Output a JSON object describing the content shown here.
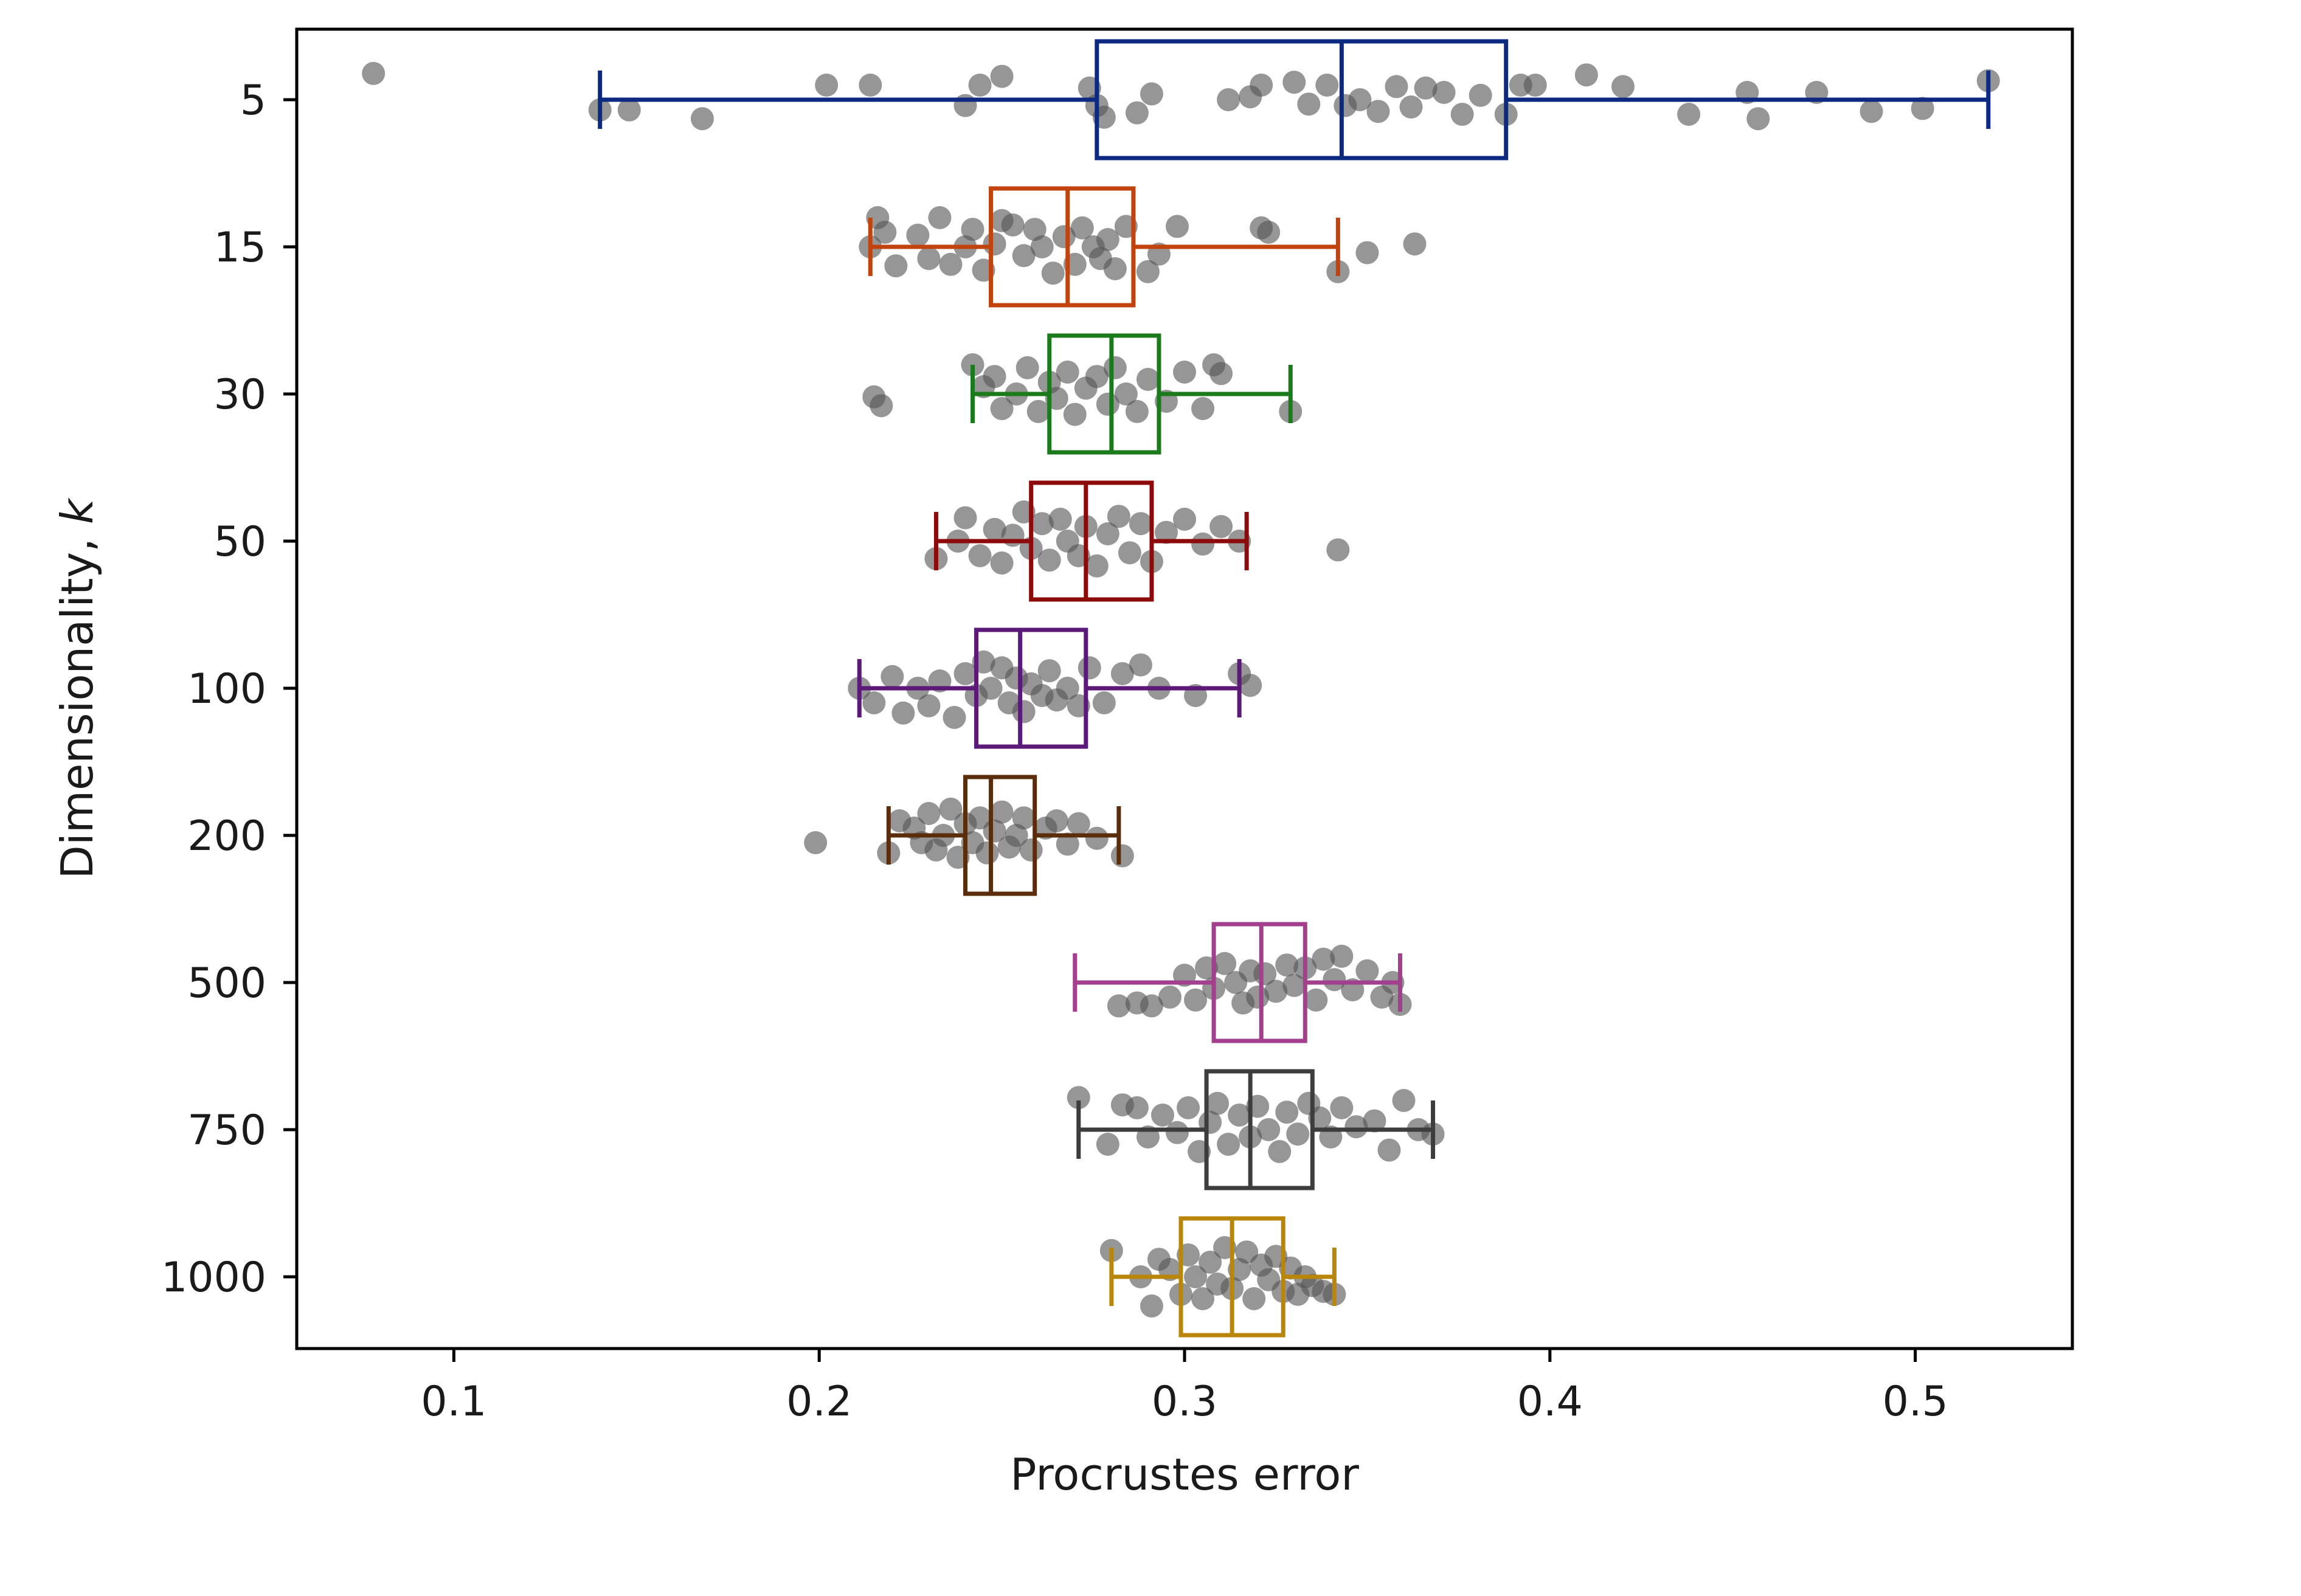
{
  "chart_data": {
    "type": "box",
    "orientation": "horizontal",
    "title": "",
    "xlabel": "Procrustes error",
    "ylabel": "Dimensionality, k",
    "ylabel_italic_part": "k",
    "xlim": [
      0.057,
      0.543
    ],
    "xticks": [
      0.1,
      0.2,
      0.3,
      0.4,
      0.5
    ],
    "xtick_labels": [
      "0.1",
      "0.2",
      "0.3",
      "0.4",
      "0.5"
    ],
    "grid": false,
    "legend": "none",
    "point_color": "#555555",
    "categories": [
      "5",
      "15",
      "30",
      "50",
      "100",
      "200",
      "500",
      "750",
      "1000"
    ],
    "series": [
      {
        "category": "5",
        "color": "#0b2a80",
        "whisker_low": 0.14,
        "q1": 0.276,
        "median": 0.343,
        "q3": 0.388,
        "whisker_high": 0.52,
        "points": [
          [
            0.078,
            0.18
          ],
          [
            0.14,
            -0.07
          ],
          [
            0.148,
            -0.07
          ],
          [
            0.168,
            -0.13
          ],
          [
            0.202,
            0.1
          ],
          [
            0.214,
            0.1
          ],
          [
            0.24,
            -0.04
          ],
          [
            0.244,
            0.1
          ],
          [
            0.25,
            0.16
          ],
          [
            0.274,
            0.08
          ],
          [
            0.276,
            -0.04
          ],
          [
            0.278,
            -0.12
          ],
          [
            0.287,
            -0.09
          ],
          [
            0.291,
            0.04
          ],
          [
            0.312,
            0.0
          ],
          [
            0.318,
            0.02
          ],
          [
            0.321,
            0.1
          ],
          [
            0.33,
            0.12
          ],
          [
            0.334,
            -0.03
          ],
          [
            0.339,
            0.1
          ],
          [
            0.344,
            -0.04
          ],
          [
            0.348,
            0.0
          ],
          [
            0.353,
            -0.08
          ],
          [
            0.358,
            0.09
          ],
          [
            0.362,
            -0.05
          ],
          [
            0.366,
            0.08
          ],
          [
            0.371,
            0.05
          ],
          [
            0.376,
            -0.1
          ],
          [
            0.381,
            0.03
          ],
          [
            0.388,
            -0.1
          ],
          [
            0.392,
            0.1
          ],
          [
            0.396,
            0.1
          ],
          [
            0.41,
            0.17
          ],
          [
            0.42,
            0.09
          ],
          [
            0.438,
            -0.1
          ],
          [
            0.454,
            0.05
          ],
          [
            0.457,
            -0.13
          ],
          [
            0.473,
            0.05
          ],
          [
            0.488,
            -0.08
          ],
          [
            0.502,
            -0.06
          ],
          [
            0.52,
            0.13
          ]
        ]
      },
      {
        "category": "15",
        "color": "#c1440e",
        "whisker_low": 0.214,
        "q1": 0.247,
        "median": 0.268,
        "q3": 0.286,
        "whisker_high": 0.342,
        "points": [
          [
            0.214,
            0.0
          ],
          [
            0.216,
            0.2
          ],
          [
            0.218,
            0.1
          ],
          [
            0.221,
            -0.13
          ],
          [
            0.227,
            0.08
          ],
          [
            0.23,
            -0.08
          ],
          [
            0.233,
            0.2
          ],
          [
            0.236,
            -0.12
          ],
          [
            0.24,
            0.0
          ],
          [
            0.242,
            0.12
          ],
          [
            0.245,
            -0.16
          ],
          [
            0.248,
            0.02
          ],
          [
            0.25,
            0.18
          ],
          [
            0.253,
            0.15
          ],
          [
            0.256,
            -0.06
          ],
          [
            0.259,
            0.12
          ],
          [
            0.261,
            0.0
          ],
          [
            0.264,
            -0.18
          ],
          [
            0.267,
            0.07
          ],
          [
            0.27,
            -0.12
          ],
          [
            0.272,
            0.13
          ],
          [
            0.275,
            0.0
          ],
          [
            0.277,
            -0.08
          ],
          [
            0.279,
            0.05
          ],
          [
            0.281,
            -0.15
          ],
          [
            0.284,
            0.14
          ],
          [
            0.29,
            -0.17
          ],
          [
            0.293,
            -0.05
          ],
          [
            0.298,
            0.14
          ],
          [
            0.321,
            0.13
          ],
          [
            0.323,
            0.1
          ],
          [
            0.342,
            -0.17
          ],
          [
            0.35,
            -0.04
          ],
          [
            0.363,
            0.02
          ]
        ]
      },
      {
        "category": "30",
        "color": "#1b7a1b",
        "whisker_low": 0.242,
        "q1": 0.263,
        "median": 0.28,
        "q3": 0.293,
        "whisker_high": 0.329,
        "points": [
          [
            0.215,
            -0.02
          ],
          [
            0.217,
            -0.08
          ],
          [
            0.242,
            0.2
          ],
          [
            0.245,
            0.05
          ],
          [
            0.248,
            0.12
          ],
          [
            0.25,
            -0.1
          ],
          [
            0.254,
            0.0
          ],
          [
            0.257,
            0.18
          ],
          [
            0.26,
            -0.12
          ],
          [
            0.263,
            0.08
          ],
          [
            0.265,
            -0.03
          ],
          [
            0.268,
            0.15
          ],
          [
            0.27,
            -0.14
          ],
          [
            0.273,
            0.04
          ],
          [
            0.276,
            0.12
          ],
          [
            0.279,
            -0.07
          ],
          [
            0.281,
            0.18
          ],
          [
            0.284,
            0.0
          ],
          [
            0.287,
            -0.12
          ],
          [
            0.29,
            0.1
          ],
          [
            0.295,
            -0.05
          ],
          [
            0.3,
            0.15
          ],
          [
            0.305,
            -0.1
          ],
          [
            0.308,
            0.2
          ],
          [
            0.31,
            0.14
          ],
          [
            0.329,
            -0.12
          ]
        ]
      },
      {
        "category": "50",
        "color": "#8c0a0a",
        "whisker_low": 0.232,
        "q1": 0.258,
        "median": 0.273,
        "q3": 0.291,
        "whisker_high": 0.317,
        "points": [
          [
            0.232,
            -0.12
          ],
          [
            0.238,
            0.0
          ],
          [
            0.24,
            0.16
          ],
          [
            0.244,
            -0.1
          ],
          [
            0.248,
            0.08
          ],
          [
            0.25,
            -0.15
          ],
          [
            0.253,
            0.04
          ],
          [
            0.256,
            0.2
          ],
          [
            0.258,
            -0.05
          ],
          [
            0.261,
            0.12
          ],
          [
            0.263,
            -0.13
          ],
          [
            0.266,
            0.15
          ],
          [
            0.268,
            0.0
          ],
          [
            0.271,
            -0.1
          ],
          [
            0.273,
            0.1
          ],
          [
            0.276,
            -0.17
          ],
          [
            0.279,
            0.05
          ],
          [
            0.282,
            0.17
          ],
          [
            0.285,
            -0.08
          ],
          [
            0.288,
            0.12
          ],
          [
            0.291,
            -0.14
          ],
          [
            0.295,
            0.06
          ],
          [
            0.3,
            0.15
          ],
          [
            0.305,
            -0.02
          ],
          [
            0.31,
            0.1
          ],
          [
            0.315,
            0.0
          ],
          [
            0.342,
            -0.06
          ]
        ]
      },
      {
        "category": "100",
        "color": "#5c1a78",
        "whisker_low": 0.211,
        "q1": 0.243,
        "median": 0.255,
        "q3": 0.273,
        "whisker_high": 0.315,
        "points": [
          [
            0.211,
            0.0
          ],
          [
            0.215,
            -0.1
          ],
          [
            0.22,
            0.08
          ],
          [
            0.223,
            -0.17
          ],
          [
            0.227,
            0.0
          ],
          [
            0.23,
            -0.12
          ],
          [
            0.233,
            0.05
          ],
          [
            0.237,
            -0.2
          ],
          [
            0.24,
            0.1
          ],
          [
            0.243,
            -0.05
          ],
          [
            0.245,
            0.18
          ],
          [
            0.247,
            0.0
          ],
          [
            0.25,
            0.14
          ],
          [
            0.252,
            -0.1
          ],
          [
            0.254,
            0.07
          ],
          [
            0.256,
            -0.16
          ],
          [
            0.258,
            0.03
          ],
          [
            0.261,
            -0.05
          ],
          [
            0.263,
            0.12
          ],
          [
            0.265,
            -0.08
          ],
          [
            0.268,
            0.0
          ],
          [
            0.271,
            -0.12
          ],
          [
            0.274,
            0.14
          ],
          [
            0.278,
            -0.1
          ],
          [
            0.283,
            0.1
          ],
          [
            0.288,
            0.16
          ],
          [
            0.293,
            0.0
          ],
          [
            0.303,
            -0.05
          ],
          [
            0.315,
            0.1
          ],
          [
            0.318,
            0.02
          ]
        ]
      },
      {
        "category": "200",
        "color": "#5a2d0c",
        "whisker_low": 0.219,
        "q1": 0.24,
        "median": 0.247,
        "q3": 0.259,
        "whisker_high": 0.282,
        "points": [
          [
            0.199,
            -0.05
          ],
          [
            0.219,
            -0.12
          ],
          [
            0.222,
            0.1
          ],
          [
            0.226,
            0.05
          ],
          [
            0.228,
            -0.05
          ],
          [
            0.23,
            0.15
          ],
          [
            0.232,
            -0.1
          ],
          [
            0.234,
            0.0
          ],
          [
            0.236,
            0.18
          ],
          [
            0.238,
            -0.15
          ],
          [
            0.24,
            0.08
          ],
          [
            0.242,
            -0.05
          ],
          [
            0.244,
            0.12
          ],
          [
            0.246,
            -0.12
          ],
          [
            0.248,
            0.03
          ],
          [
            0.25,
            0.16
          ],
          [
            0.252,
            -0.08
          ],
          [
            0.254,
            0.0
          ],
          [
            0.256,
            0.12
          ],
          [
            0.258,
            -0.1
          ],
          [
            0.262,
            0.05
          ],
          [
            0.265,
            0.1
          ],
          [
            0.268,
            -0.06
          ],
          [
            0.271,
            0.08
          ],
          [
            0.276,
            -0.02
          ],
          [
            0.283,
            -0.14
          ]
        ]
      },
      {
        "category": "500",
        "color": "#a33f8c",
        "whisker_low": 0.27,
        "q1": 0.308,
        "median": 0.321,
        "q3": 0.333,
        "whisker_high": 0.359,
        "points": [
          [
            0.282,
            -0.16
          ],
          [
            0.287,
            -0.14
          ],
          [
            0.291,
            -0.16
          ],
          [
            0.296,
            -0.1
          ],
          [
            0.3,
            0.05
          ],
          [
            0.303,
            -0.12
          ],
          [
            0.306,
            0.1
          ],
          [
            0.308,
            -0.04
          ],
          [
            0.311,
            0.13
          ],
          [
            0.314,
            0.0
          ],
          [
            0.316,
            -0.14
          ],
          [
            0.318,
            0.08
          ],
          [
            0.32,
            -0.1
          ],
          [
            0.322,
            0.06
          ],
          [
            0.325,
            -0.06
          ],
          [
            0.328,
            0.12
          ],
          [
            0.33,
            -0.02
          ],
          [
            0.333,
            0.1
          ],
          [
            0.336,
            -0.12
          ],
          [
            0.338,
            0.16
          ],
          [
            0.341,
            0.02
          ],
          [
            0.343,
            0.18
          ],
          [
            0.346,
            -0.05
          ],
          [
            0.35,
            0.08
          ],
          [
            0.354,
            -0.1
          ],
          [
            0.357,
            0.0
          ],
          [
            0.359,
            -0.15
          ]
        ]
      },
      {
        "category": "750",
        "color": "#3d3d3d",
        "whisker_low": 0.271,
        "q1": 0.306,
        "median": 0.318,
        "q3": 0.335,
        "whisker_high": 0.368,
        "points": [
          [
            0.271,
            0.22
          ],
          [
            0.279,
            -0.1
          ],
          [
            0.283,
            0.17
          ],
          [
            0.287,
            0.15
          ],
          [
            0.29,
            -0.05
          ],
          [
            0.294,
            0.1
          ],
          [
            0.298,
            -0.02
          ],
          [
            0.301,
            0.15
          ],
          [
            0.304,
            -0.15
          ],
          [
            0.307,
            0.05
          ],
          [
            0.309,
            0.18
          ],
          [
            0.312,
            -0.1
          ],
          [
            0.315,
            0.1
          ],
          [
            0.318,
            -0.05
          ],
          [
            0.32,
            0.16
          ],
          [
            0.323,
            0.0
          ],
          [
            0.326,
            -0.15
          ],
          [
            0.328,
            0.12
          ],
          [
            0.331,
            -0.03
          ],
          [
            0.334,
            0.18
          ],
          [
            0.337,
            0.08
          ],
          [
            0.34,
            -0.05
          ],
          [
            0.343,
            0.15
          ],
          [
            0.347,
            0.02
          ],
          [
            0.352,
            0.06
          ],
          [
            0.356,
            -0.14
          ],
          [
            0.36,
            0.2
          ],
          [
            0.364,
            0.0
          ],
          [
            0.368,
            -0.03
          ]
        ]
      },
      {
        "category": "1000",
        "color": "#b8860b",
        "whisker_low": 0.28,
        "q1": 0.299,
        "median": 0.313,
        "q3": 0.327,
        "whisker_high": 0.341,
        "points": [
          [
            0.28,
            0.18
          ],
          [
            0.288,
            0.0
          ],
          [
            0.291,
            -0.2
          ],
          [
            0.293,
            0.12
          ],
          [
            0.296,
            0.05
          ],
          [
            0.299,
            -0.12
          ],
          [
            0.301,
            0.15
          ],
          [
            0.303,
            0.0
          ],
          [
            0.305,
            -0.15
          ],
          [
            0.307,
            0.1
          ],
          [
            0.309,
            -0.05
          ],
          [
            0.311,
            0.2
          ],
          [
            0.313,
            -0.08
          ],
          [
            0.315,
            0.05
          ],
          [
            0.317,
            0.17
          ],
          [
            0.319,
            -0.15
          ],
          [
            0.321,
            0.08
          ],
          [
            0.323,
            -0.02
          ],
          [
            0.325,
            0.14
          ],
          [
            0.327,
            -0.1
          ],
          [
            0.329,
            0.06
          ],
          [
            0.331,
            -0.12
          ],
          [
            0.333,
            0.0
          ],
          [
            0.335,
            -0.06
          ],
          [
            0.338,
            -0.1
          ],
          [
            0.341,
            -0.12
          ]
        ]
      }
    ]
  }
}
